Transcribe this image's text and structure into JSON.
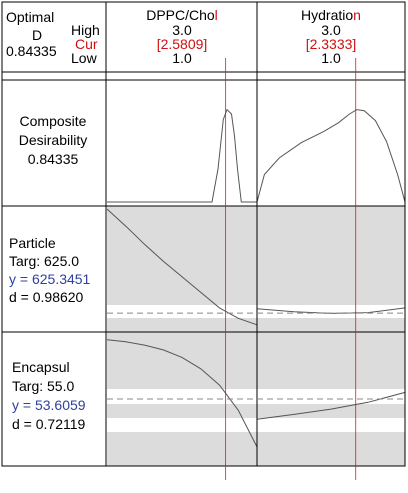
{
  "header": {
    "optimal_label": "Optimal",
    "d_label": "D",
    "d_value": "0.84335",
    "high_label": "High",
    "cur_label": "Cur",
    "low_label": "Low",
    "factors": [
      {
        "name_main": "DPPC/Cho",
        "name_tail": "l",
        "high": "3.0",
        "cur": "[2.5809]",
        "low": "1.0"
      },
      {
        "name_main": "Hydratio",
        "name_tail": "n",
        "high": "3.0",
        "cur": "[2.3333]",
        "low": "1.0"
      }
    ]
  },
  "rows": [
    {
      "line1": "Composite",
      "line2": "Desirability",
      "line3": "0.84335"
    },
    {
      "name": "Particle",
      "targ": "Targ: 625.0",
      "y": "y = 625.3451",
      "d": "d = 0.98620"
    },
    {
      "name": "Encapsul",
      "targ": "Targ: 55.0",
      "y": "y = 53.6059",
      "d": "d = 0.72119"
    }
  ],
  "colors": {
    "red": "#d01010",
    "blue": "#3040a0",
    "band": "#dcdcdc",
    "grid": "#000000",
    "curve": "#555555"
  },
  "chart_data": {
    "type": "line",
    "x_ranges": [
      [
        1.0,
        3.0
      ],
      [
        1.0,
        3.0
      ]
    ],
    "current_x": [
      2.5809,
      2.3333
    ],
    "panels": [
      {
        "response": "Composite Desirability",
        "series": [
          {
            "x": [
              1.0,
              2.4,
              2.48,
              2.55,
              2.6,
              2.66,
              2.7,
              2.74,
              2.79,
              3.0
            ],
            "y": [
              0,
              0,
              0.3,
              0.75,
              0.84,
              0.8,
              0.6,
              0.3,
              0,
              0
            ]
          },
          {
            "x": [
              1.0,
              1.1,
              1.3,
              1.6,
              1.9,
              2.1,
              2.25,
              2.35,
              2.45,
              2.6,
              2.75,
              2.9,
              3.0
            ],
            "y": [
              0,
              0.25,
              0.4,
              0.54,
              0.64,
              0.72,
              0.8,
              0.84,
              0.83,
              0.74,
              0.55,
              0.25,
              0
            ]
          }
        ]
      },
      {
        "response": "Particle",
        "target": 625.0,
        "series": [
          {
            "x": [
              1.0,
              1.25,
              1.5,
              1.75,
              2.0,
              2.25,
              2.5,
              2.75,
              3.0
            ],
            "y": [
              1026,
              960,
              890,
              825,
              765,
              705,
              645,
              605,
              580
            ]
          },
          {
            "x": [
              1.0,
              1.5,
              2.0,
              2.5,
              3.0
            ],
            "y": [
              642,
              630,
              624,
              627,
              645
            ]
          }
        ]
      },
      {
        "response": "Encapsul",
        "target": 55.0,
        "series": [
          {
            "x": [
              1.0,
              1.25,
              1.5,
              1.75,
              2.0,
              2.25,
              2.5,
              2.75,
              3.0
            ],
            "y": [
              78.5,
              77.7,
              76.4,
              74.5,
              71.5,
              67.0,
              60.5,
              50.5,
              36.0
            ]
          },
          {
            "x": [
              1.0,
              1.5,
              2.0,
              2.5,
              3.0
            ],
            "y": [
              47.0,
              48.9,
              51.0,
              53.7,
              57.6
            ]
          }
        ]
      }
    ]
  }
}
